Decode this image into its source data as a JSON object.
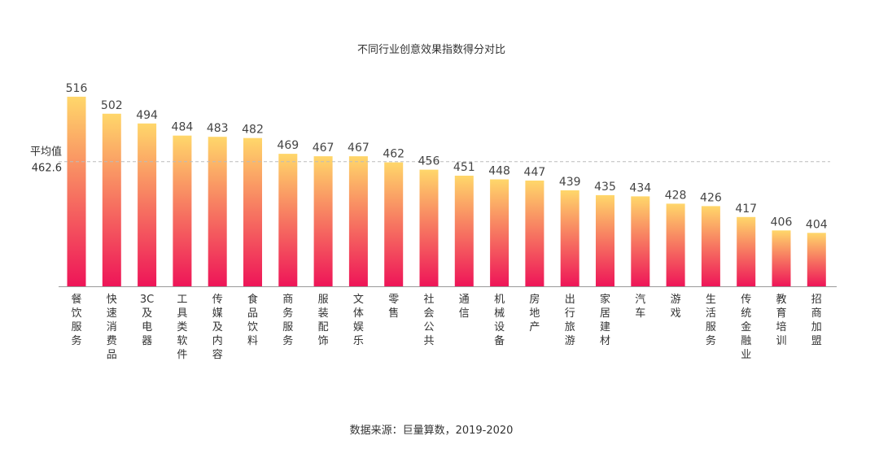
{
  "chart_data": {
    "type": "bar",
    "title": "不同行业创意效果指数得分对比",
    "source": "数据来源：巨量算数，2019-2020",
    "categories": [
      "餐饮服务",
      "快速消费品",
      "3C及电器",
      "工具类软件",
      "传媒及内容",
      "食品饮料",
      "商务服务",
      "服装配饰",
      "文体娱乐",
      "零售",
      "社会公共",
      "通信",
      "机械设备",
      "房地产",
      "出行旅游",
      "家居建材",
      "汽车",
      "游戏",
      "生活服务",
      "传统金融业",
      "教育培训",
      "招商加盟"
    ],
    "values": [
      516,
      502,
      494,
      484,
      483,
      482,
      469,
      467,
      467,
      462,
      456,
      451,
      448,
      447,
      439,
      435,
      434,
      428,
      426,
      417,
      406,
      404
    ],
    "average": {
      "label": "平均值",
      "value": 462.6,
      "value_text": "462.6"
    },
    "ylim": [
      360,
      530
    ],
    "grid": false,
    "legend": "none",
    "colors": {
      "bar_top": "#FFD76A",
      "bar_bottom": "#EE1558",
      "avg_line": "#BBBBBB",
      "axis": "#999999"
    }
  }
}
